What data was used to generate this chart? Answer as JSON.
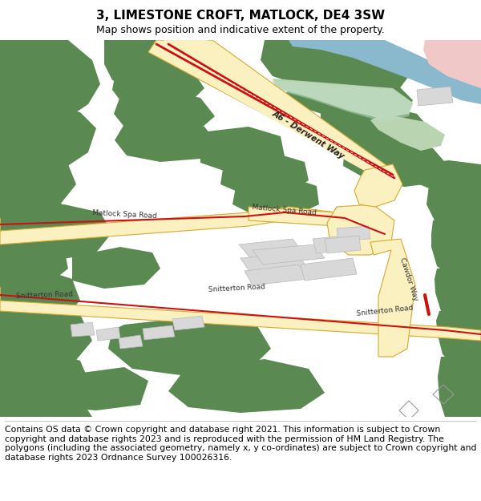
{
  "title": "3, LIMESTONE CROFT, MATLOCK, DE4 3SW",
  "subtitle": "Map shows position and indicative extent of the property.",
  "footer": "Contains OS data © Crown copyright and database right 2021. This information is subject to Crown copyright and database rights 2023 and is reproduced with the permission of HM Land Registry. The polygons (including the associated geometry, namely x, y co-ordinates) are subject to Crown copyright and database rights 2023 Ordnance Survey 100026316.",
  "map_bg": "#ffffff",
  "green": "#5a8a52",
  "light_green": "#b8d4b0",
  "yellow_fill": "#faf0c0",
  "yellow_edge": "#d4aa30",
  "red": "#cc1111",
  "blue": "#8ab8cc",
  "light_blue_green": "#c0ddc8",
  "pink": "#f0c8c8",
  "gray_bldg": "#d8d8d8",
  "gray_bldg_edge": "#b8b8b8",
  "road_text": "#333333",
  "title_fs": 11,
  "sub_fs": 9,
  "footer_fs": 7.8
}
